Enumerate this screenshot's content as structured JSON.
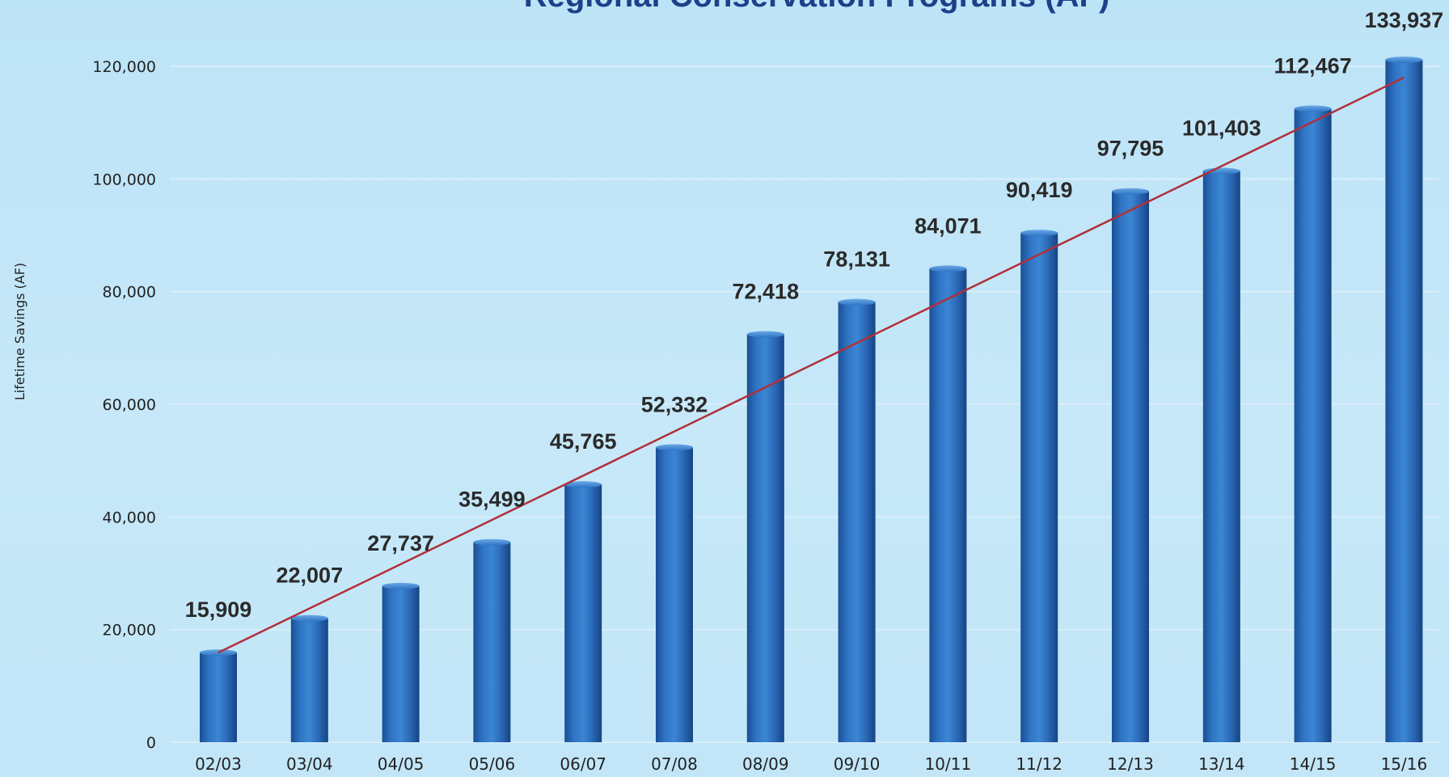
{
  "chart_data": {
    "type": "bar",
    "title": "Regional Conservation Programs (AF)",
    "xlabel": "",
    "ylabel": "Lifetime Savings (AF)",
    "ylim": [
      0,
      120000
    ],
    "yticks": [
      "0",
      "20,000",
      "40,000",
      "60,000",
      "80,000",
      "100,000",
      "120,000"
    ],
    "categories": [
      "02/03",
      "03/04",
      "04/05",
      "05/06",
      "06/07",
      "07/08",
      "08/09",
      "09/10",
      "10/11",
      "11/12",
      "12/13",
      "13/14",
      "14/15",
      "15/16"
    ],
    "values": [
      15909,
      22007,
      27737,
      35499,
      45765,
      52332,
      72418,
      78131,
      84071,
      90419,
      97795,
      101403,
      112467,
      133937
    ],
    "data_labels": [
      "15,909",
      "22,007",
      "27,737",
      "35,499",
      "45,765",
      "52,332",
      "72,418",
      "78,131",
      "84,071",
      "90,419",
      "97,795",
      "101,403",
      "112,467",
      "133,937"
    ],
    "trendline": {
      "type": "linear",
      "color": "#b0303a",
      "start_value": 15909,
      "end_value": 118000
    },
    "grid": true,
    "legend": "none",
    "colors": {
      "bar": "#2a6ab8",
      "bar_dark": "#123f7a",
      "trend": "#b0303a",
      "background": "#c2e6f8"
    }
  }
}
